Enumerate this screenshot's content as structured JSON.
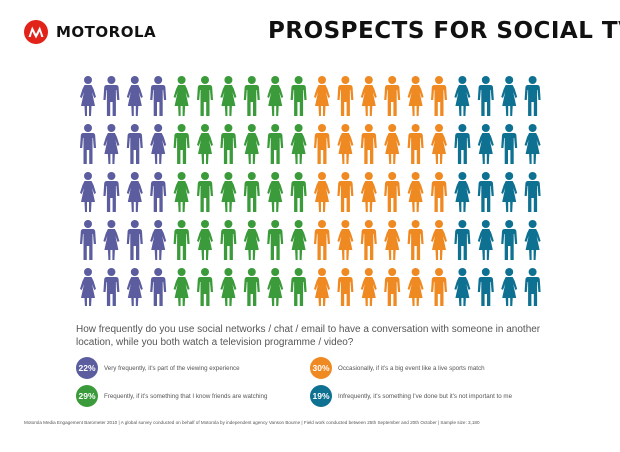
{
  "brand": "MOTOROLA",
  "title": "PROSPECTS FOR SOCIAL TV",
  "chart_data": {
    "type": "pictogram",
    "question": "How frequently do you use social networks / chat / email to have a conversation with someone in another location, while you both watch a television programme / video?",
    "categories": [
      "Very frequently, it's part of the viewing experience",
      "Frequently, if it's something that I know friends are watching",
      "Occasionally, if it's a big event like a live sports match",
      "Infrequently, it's something I've done but it's not important to me"
    ],
    "series": [
      {
        "label": "22%",
        "value": 22,
        "description": "Very frequently, it's part of the viewing experience",
        "color": "#5b5d9e"
      },
      {
        "label": "29%",
        "value": 29,
        "description": "Frequently, if it's something that I know friends are watching",
        "color": "#3b9a3a"
      },
      {
        "label": "30%",
        "value": 30,
        "description": "Occasionally, if it's a big event like a live sports match",
        "color": "#ef8a23"
      },
      {
        "label": "19%",
        "value": 19,
        "description": "Infrequently, it's something I've done but it's not important to me",
        "color": "#0e7191"
      }
    ],
    "icons_total": 100
  },
  "footer": "Motorola Media Engagement Barometer 2010 | A global survey conducted on behalf of Motorola by independent agency Vanson Bourne | Field work conducted between 25th September and 20th October | Sample size: 3,180",
  "colors": {
    "brand_red": "#e2231a"
  }
}
